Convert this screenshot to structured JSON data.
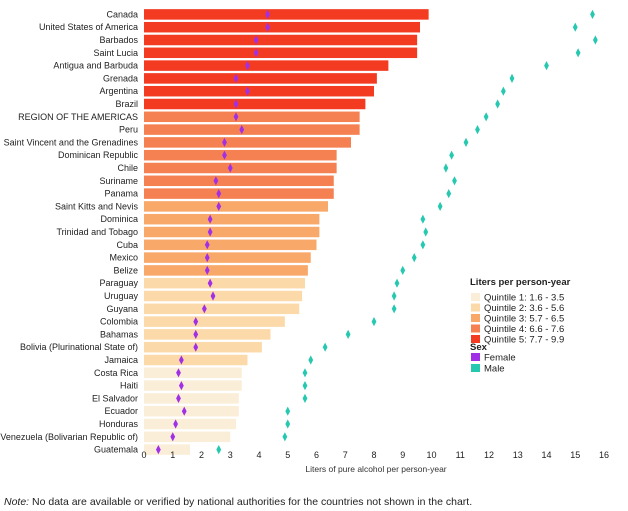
{
  "chart_data": {
    "type": "bar",
    "xlabel": "Liters of pure alcohol per person-year",
    "xlim": [
      0,
      16
    ],
    "xticks": [
      0,
      1,
      2,
      3,
      4,
      5,
      6,
      7,
      8,
      9,
      10,
      11,
      12,
      13,
      14,
      15,
      16
    ],
    "grid": false,
    "legend_position": "right",
    "categories": [
      "Canada",
      "United States of America",
      "Barbados",
      "Saint Lucia",
      "Antigua and Barbuda",
      "Grenada",
      "Argentina",
      "Brazil",
      "REGION OF THE AMERICAS",
      "Peru",
      "Saint Vincent and the Grenadines",
      "Dominican Republic",
      "Chile",
      "Suriname",
      "Panama",
      "Saint Kitts and Nevis",
      "Dominica",
      "Trinidad and Tobago",
      "Cuba",
      "Mexico",
      "Belize",
      "Paraguay",
      "Uruguay",
      "Guyana",
      "Colombia",
      "Bahamas",
      "Bolivia (Plurinational State of)",
      "Jamaica",
      "Costa Rica",
      "Haiti",
      "El Salvador",
      "Ecuador",
      "Honduras",
      "Venezuela (Bolivarian Republic of)",
      "Guatemala"
    ],
    "values": [
      9.9,
      9.6,
      9.5,
      9.5,
      8.5,
      8.1,
      8.0,
      7.7,
      7.5,
      7.5,
      7.2,
      6.7,
      6.7,
      6.6,
      6.6,
      6.4,
      6.1,
      6.1,
      6.0,
      5.8,
      5.7,
      5.6,
      5.5,
      5.4,
      4.9,
      4.4,
      4.1,
      3.6,
      3.4,
      3.4,
      3.3,
      3.3,
      3.2,
      3.0,
      1.6
    ],
    "quintile_legend": {
      "title": "Liters per person-year",
      "items": [
        {
          "label": "Quintile 1: 1.6 - 3.5",
          "color": "#fbeed9"
        },
        {
          "label": "Quintile 2: 3.6 - 5.6",
          "color": "#fcd9a8"
        },
        {
          "label": "Quintile 3: 5.7 - 6.5",
          "color": "#f8a96a"
        },
        {
          "label": "Quintile 4: 6.6 - 7.6",
          "color": "#f58152"
        },
        {
          "label": "Quintile 5: 7.7 - 9.9",
          "color": "#f33b22"
        }
      ]
    },
    "series": [
      {
        "name": "Female",
        "color": "#a12fe6",
        "values": [
          4.3,
          4.3,
          3.9,
          3.9,
          3.6,
          3.2,
          3.6,
          3.2,
          3.2,
          3.4,
          2.8,
          2.8,
          3.0,
          2.5,
          2.6,
          2.6,
          2.3,
          2.3,
          2.2,
          2.2,
          2.2,
          2.3,
          2.4,
          2.1,
          1.8,
          1.8,
          1.8,
          1.3,
          1.2,
          1.3,
          1.2,
          1.4,
          1.1,
          1.0,
          0.5
        ]
      },
      {
        "name": "Male",
        "color": "#26c8b0",
        "values": [
          15.6,
          15.0,
          15.7,
          15.1,
          14.0,
          12.8,
          12.5,
          12.3,
          11.9,
          11.6,
          11.2,
          10.7,
          10.5,
          10.8,
          10.6,
          10.3,
          9.7,
          9.8,
          9.7,
          9.4,
          9.0,
          8.8,
          8.7,
          8.7,
          8.0,
          7.1,
          6.3,
          5.8,
          5.6,
          5.6,
          5.6,
          5.0,
          5.0,
          4.9,
          2.6
        ]
      }
    ],
    "sex_legend_title": "Sex"
  },
  "note": {
    "prefix": "Note:",
    "text": " No data are available or verified by national authorities for the countries not shown in the chart."
  }
}
